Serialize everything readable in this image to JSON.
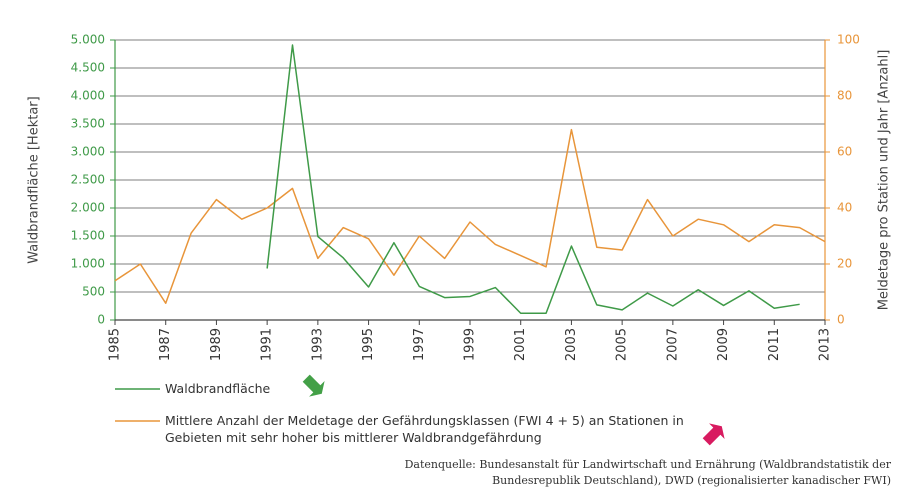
{
  "chart_data": {
    "type": "line",
    "ylabel": "Waldbrandfläche [Hektar]",
    "y2label": "Meldetage pro Station und Jahr [Anzahl]",
    "source": "Datenquelle: Bundesanstalt für Landwirtschaft und Ernährung (Waldbrandstatistik der Bundesrepublik Deutschland), DWD (regionalisierter kanadischer FWI)",
    "x": [
      1985,
      1986,
      1987,
      1988,
      1989,
      1990,
      1991,
      1992,
      1993,
      1994,
      1995,
      1996,
      1997,
      1998,
      1999,
      2000,
      2001,
      2002,
      2003,
      2004,
      2005,
      2006,
      2007,
      2008,
      2009,
      2010,
      2011,
      2012,
      2013
    ],
    "xlim": [
      1985,
      2013
    ],
    "xticks": [
      1985,
      1987,
      1989,
      1991,
      1993,
      1995,
      1997,
      1999,
      2001,
      2003,
      2005,
      2007,
      2009,
      2011,
      2013
    ],
    "ylim": [
      0,
      5000
    ],
    "yticks": [
      0,
      500,
      {
        "value": 1000,
        "label": "1.000"
      },
      {
        "value": 1500,
        "label": "1.500"
      },
      {
        "value": 2000,
        "label": "2.000"
      },
      {
        "value": 2500,
        "label": "2.500"
      },
      {
        "value": 3000,
        "label": "3.000"
      },
      {
        "value": 3500,
        "label": "3.500"
      },
      {
        "value": 4000,
        "label": "4.000"
      },
      {
        "value": 4500,
        "label": "4.500"
      },
      {
        "value": 5000,
        "label": "5.000"
      }
    ],
    "y2lim": [
      0,
      100
    ],
    "y2ticks": [
      0,
      20,
      40,
      60,
      80,
      100
    ],
    "grid": true,
    "series": [
      {
        "name": "Waldbrandfläche",
        "color": "#3f9a48",
        "axis": "y",
        "values": [
          null,
          null,
          null,
          null,
          null,
          null,
          920,
          4910,
          1490,
          1110,
          590,
          1380,
          600,
          400,
          420,
          580,
          120,
          120,
          1320,
          270,
          180,
          480,
          250,
          540,
          260,
          520,
          210,
          280,
          null
        ]
      },
      {
        "name": "Mittlere Anzahl der Meldetage der Gefährdungsklassen (FWI 4 + 5) an Stationen in Gebieten mit sehr hoher bis mittlerer Waldbrandgefährdung",
        "color": "#e8953a",
        "axis": "y2",
        "values": [
          14,
          20,
          6,
          31,
          43,
          36,
          40,
          47,
          22,
          33,
          29,
          16,
          30,
          22,
          35,
          27,
          23,
          19,
          68,
          26,
          25,
          43,
          30,
          36,
          34,
          28,
          34,
          33,
          28
        ]
      }
    ]
  }
}
